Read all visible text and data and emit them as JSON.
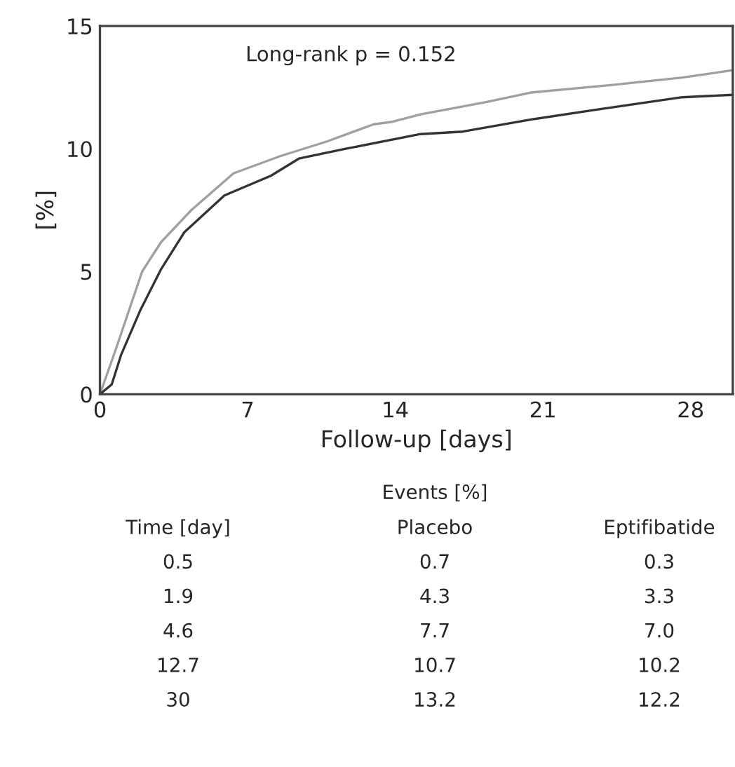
{
  "chart_data": {
    "type": "line",
    "xlabel": "Follow-up [days]",
    "ylabel": "[%]",
    "xlim": [
      0,
      30
    ],
    "xticks": [
      0,
      7,
      14,
      21,
      28
    ],
    "ylim": [
      0,
      15
    ],
    "yticks": [
      0,
      5,
      10,
      15
    ],
    "grid": false,
    "legend": false,
    "marker": "none",
    "line_style": "solid",
    "series": [
      {
        "color": "#a0a0a0",
        "x": [
          0,
          0.78,
          2.0,
          2.9,
          4.33,
          6.33,
          8.54,
          10.76,
          12.98,
          13.86,
          15.2,
          18.3,
          20.5,
          24.3,
          27.6,
          30
        ],
        "values": [
          0,
          1.9,
          5.0,
          6.2,
          7.5,
          9.0,
          9.7,
          10.3,
          11.0,
          11.1,
          11.4,
          11.9,
          12.3,
          12.6,
          12.9,
          13.2
        ]
      },
      {
        "color": "#333333",
        "x": [
          0,
          0.56,
          1.0,
          1.9,
          2.9,
          4.0,
          5.9,
          8.1,
          9.43,
          11.65,
          15.2,
          17.2,
          20.5,
          23.6,
          27.6,
          30
        ],
        "values": [
          0,
          0.4,
          1.6,
          3.4,
          5.1,
          6.6,
          8.1,
          8.9,
          9.6,
          10.0,
          10.6,
          10.7,
          11.2,
          11.6,
          12.1,
          12.2
        ]
      }
    ],
    "annotations": [
      "Long-rank p = 0.152",
      "Events [%]",
      "Time [day]",
      "Placebo",
      "Eptifibatide",
      "0.5",
      "0.7",
      "0.3",
      "1.9",
      "4.3",
      "3.3",
      "4.6",
      "7.7",
      "7.0",
      "12.7",
      "10.7",
      "10.2",
      "30",
      "13.2",
      "12.2"
    ]
  }
}
